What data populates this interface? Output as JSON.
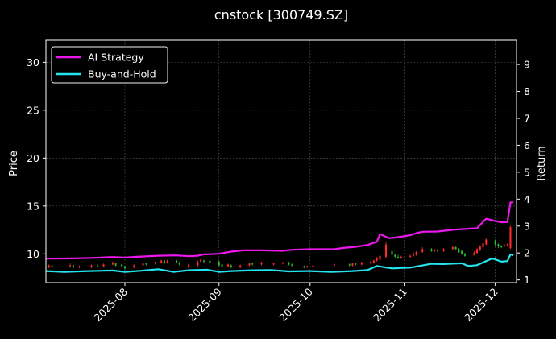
{
  "chart_data": {
    "type": "candlestick+line",
    "title": "cnstock [300749.SZ]",
    "ylabel_left": "Price",
    "ylabel_right": "Return",
    "ylim_left": [
      7,
      32.3
    ],
    "yticks_left": [
      10,
      15,
      20,
      25,
      30
    ],
    "ylim_right": [
      0.9,
      9.9
    ],
    "yticks_right": [
      1,
      2,
      3,
      4,
      5,
      6,
      7,
      8,
      9
    ],
    "xlim": [
      "2025-07-06",
      "2025-12-08"
    ],
    "xticks": [
      "2025-08",
      "2025-09",
      "2025-10",
      "2025-11",
      "2025-12"
    ],
    "grid": true,
    "legend_position": "top-left",
    "colors": {
      "background": "#000000",
      "up": "#ff2a2a",
      "down": "#2fb82f",
      "strategy": "#ee17ee",
      "buy_hold": "#22e5f0",
      "grid": "#555555"
    },
    "series": [
      {
        "name": "AI Strategy",
        "axis": "right",
        "points": [
          [
            "2025-07-06",
            1.79
          ],
          [
            "2025-07-15",
            1.8
          ],
          [
            "2025-07-22",
            1.82
          ],
          [
            "2025-07-28",
            1.85
          ],
          [
            "2025-08-01",
            1.83
          ],
          [
            "2025-08-05",
            1.86
          ],
          [
            "2025-08-12",
            1.9
          ],
          [
            "2025-08-18",
            1.91
          ],
          [
            "2025-08-22",
            1.88
          ],
          [
            "2025-08-25",
            1.9
          ],
          [
            "2025-08-27",
            1.95
          ],
          [
            "2025-09-01",
            1.97
          ],
          [
            "2025-09-05",
            2.05
          ],
          [
            "2025-09-09",
            2.1
          ],
          [
            "2025-09-15",
            2.1
          ],
          [
            "2025-09-22",
            2.08
          ],
          [
            "2025-09-25",
            2.12
          ],
          [
            "2025-10-01",
            2.14
          ],
          [
            "2025-10-09",
            2.14
          ],
          [
            "2025-10-12",
            2.19
          ],
          [
            "2025-10-16",
            2.23
          ],
          [
            "2025-10-20",
            2.3
          ],
          [
            "2025-10-23",
            2.42
          ],
          [
            "2025-10-24",
            2.7
          ],
          [
            "2025-10-27",
            2.55
          ],
          [
            "2025-10-30",
            2.59
          ],
          [
            "2025-11-03",
            2.66
          ],
          [
            "2025-11-05",
            2.74
          ],
          [
            "2025-11-07",
            2.79
          ],
          [
            "2025-11-12",
            2.8
          ],
          [
            "2025-11-17",
            2.86
          ],
          [
            "2025-11-21",
            2.89
          ],
          [
            "2025-11-25",
            2.92
          ],
          [
            "2025-11-28",
            3.27
          ],
          [
            "2025-12-01",
            3.19
          ],
          [
            "2025-12-03",
            3.14
          ],
          [
            "2025-12-05",
            3.15
          ],
          [
            "2025-12-06",
            3.88
          ],
          [
            "2025-12-07",
            3.88
          ]
        ]
      },
      {
        "name": "Buy-and-Hold",
        "axis": "right",
        "points": [
          [
            "2025-07-06",
            1.33
          ],
          [
            "2025-07-12",
            1.3
          ],
          [
            "2025-07-20",
            1.33
          ],
          [
            "2025-07-28",
            1.35
          ],
          [
            "2025-08-01",
            1.3
          ],
          [
            "2025-08-06",
            1.34
          ],
          [
            "2025-08-12",
            1.4
          ],
          [
            "2025-08-17",
            1.3
          ],
          [
            "2025-08-22",
            1.36
          ],
          [
            "2025-08-28",
            1.38
          ],
          [
            "2025-09-01",
            1.3
          ],
          [
            "2025-09-05",
            1.33
          ],
          [
            "2025-09-12",
            1.36
          ],
          [
            "2025-09-18",
            1.37
          ],
          [
            "2025-09-24",
            1.32
          ],
          [
            "2025-10-01",
            1.33
          ],
          [
            "2025-10-08",
            1.3
          ],
          [
            "2025-10-15",
            1.33
          ],
          [
            "2025-10-20",
            1.37
          ],
          [
            "2025-10-23",
            1.52
          ],
          [
            "2025-10-28",
            1.43
          ],
          [
            "2025-11-03",
            1.46
          ],
          [
            "2025-11-10",
            1.6
          ],
          [
            "2025-11-14",
            1.59
          ],
          [
            "2025-11-20",
            1.62
          ],
          [
            "2025-11-22",
            1.52
          ],
          [
            "2025-11-25",
            1.55
          ],
          [
            "2025-11-30",
            1.8
          ],
          [
            "2025-12-03",
            1.68
          ],
          [
            "2025-12-05",
            1.7
          ],
          [
            "2025-12-06",
            1.95
          ],
          [
            "2025-12-07",
            1.92
          ]
        ]
      }
    ],
    "candles": [
      [
        "2025-07-07",
        8.6,
        8.8,
        8.5,
        8.9
      ],
      [
        "2025-07-08",
        8.8,
        8.7,
        8.6,
        8.9
      ],
      [
        "2025-07-14",
        8.7,
        8.8,
        8.6,
        9.0
      ],
      [
        "2025-07-15",
        8.8,
        8.6,
        8.5,
        8.9
      ],
      [
        "2025-07-17",
        8.6,
        8.7,
        8.5,
        8.8
      ],
      [
        "2025-07-21",
        8.6,
        8.8,
        8.5,
        8.9
      ],
      [
        "2025-07-23",
        8.8,
        8.7,
        8.6,
        8.9
      ],
      [
        "2025-07-25",
        8.7,
        8.9,
        8.6,
        9.0
      ],
      [
        "2025-07-28",
        8.9,
        9.1,
        8.8,
        9.2
      ],
      [
        "2025-07-29",
        9.0,
        8.8,
        8.7,
        9.1
      ],
      [
        "2025-07-31",
        8.9,
        8.7,
        8.6,
        9.0
      ],
      [
        "2025-08-01",
        8.7,
        8.5,
        8.4,
        8.8
      ],
      [
        "2025-08-04",
        8.6,
        8.8,
        8.5,
        8.9
      ],
      [
        "2025-08-07",
        8.8,
        9.0,
        8.7,
        9.1
      ],
      [
        "2025-08-08",
        9.0,
        8.9,
        8.8,
        9.1
      ],
      [
        "2025-08-11",
        9.0,
        9.1,
        8.9,
        9.2
      ],
      [
        "2025-08-13",
        9.1,
        9.3,
        9.0,
        9.4
      ],
      [
        "2025-08-14",
        9.3,
        9.1,
        9.0,
        9.4
      ],
      [
        "2025-08-15",
        9.1,
        9.3,
        9.0,
        9.4
      ],
      [
        "2025-08-18",
        9.3,
        9.1,
        9.0,
        9.4
      ],
      [
        "2025-08-19",
        9.1,
        8.9,
        8.8,
        9.2
      ],
      [
        "2025-08-22",
        8.6,
        8.9,
        8.5,
        9.0
      ],
      [
        "2025-08-25",
        8.8,
        9.2,
        8.7,
        9.3
      ],
      [
        "2025-08-26",
        9.2,
        9.4,
        9.1,
        9.5
      ],
      [
        "2025-08-27",
        9.3,
        9.2,
        9.1,
        9.4
      ],
      [
        "2025-08-29",
        9.3,
        9.1,
        9.0,
        9.4
      ],
      [
        "2025-09-01",
        9.2,
        8.8,
        8.6,
        9.3
      ],
      [
        "2025-09-02",
        8.9,
        8.7,
        8.5,
        9.0
      ],
      [
        "2025-09-04",
        8.7,
        8.9,
        8.6,
        9.0
      ],
      [
        "2025-09-05",
        8.8,
        8.6,
        8.5,
        8.9
      ],
      [
        "2025-09-08",
        8.6,
        8.8,
        8.5,
        8.9
      ],
      [
        "2025-09-11",
        8.8,
        9.0,
        8.7,
        9.1
      ],
      [
        "2025-09-12",
        9.0,
        8.9,
        8.8,
        9.1
      ],
      [
        "2025-09-15",
        8.9,
        9.1,
        8.8,
        9.2
      ],
      [
        "2025-09-19",
        8.9,
        9.0,
        8.8,
        9.1
      ],
      [
        "2025-09-22",
        9.0,
        9.1,
        8.9,
        9.2
      ],
      [
        "2025-09-24",
        9.1,
        8.9,
        8.8,
        9.2
      ],
      [
        "2025-09-25",
        8.9,
        8.8,
        8.7,
        9.0
      ],
      [
        "2025-09-29",
        8.7,
        8.6,
        8.5,
        8.8
      ],
      [
        "2025-09-30",
        8.6,
        8.7,
        8.5,
        8.8
      ],
      [
        "2025-10-02",
        8.6,
        8.8,
        8.5,
        8.9
      ],
      [
        "2025-10-09",
        8.8,
        8.9,
        8.7,
        9.0
      ],
      [
        "2025-10-14",
        8.9,
        8.8,
        8.7,
        9.0
      ],
      [
        "2025-10-15",
        8.8,
        9.0,
        8.7,
        9.1
      ],
      [
        "2025-10-16",
        9.0,
        8.9,
        8.8,
        9.1
      ],
      [
        "2025-10-18",
        8.9,
        9.1,
        8.8,
        9.2
      ],
      [
        "2025-10-21",
        9.0,
        9.2,
        8.9,
        9.3
      ],
      [
        "2025-10-22",
        9.1,
        9.3,
        9.0,
        9.4
      ],
      [
        "2025-10-23",
        9.3,
        9.5,
        9.2,
        9.7
      ],
      [
        "2025-10-24",
        9.4,
        9.8,
        9.3,
        10.0
      ],
      [
        "2025-10-26",
        9.7,
        11.0,
        9.6,
        11.3
      ],
      [
        "2025-10-28",
        10.3,
        9.9,
        9.7,
        10.6
      ],
      [
        "2025-10-29",
        9.9,
        9.7,
        9.5,
        10.0
      ],
      [
        "2025-10-30",
        9.7,
        9.6,
        9.5,
        9.9
      ],
      [
        "2025-10-31",
        9.6,
        9.7,
        9.5,
        9.8
      ],
      [
        "2025-11-03",
        9.7,
        9.8,
        9.6,
        9.9
      ],
      [
        "2025-11-04",
        9.8,
        10.0,
        9.7,
        10.2
      ],
      [
        "2025-11-05",
        9.9,
        10.2,
        9.8,
        10.3
      ],
      [
        "2025-11-07",
        10.2,
        10.5,
        10.1,
        10.7
      ],
      [
        "2025-11-10",
        10.5,
        10.3,
        10.2,
        10.6
      ],
      [
        "2025-11-11",
        10.3,
        10.4,
        10.2,
        10.5
      ],
      [
        "2025-11-12",
        10.4,
        10.3,
        10.2,
        10.5
      ],
      [
        "2025-11-14",
        10.3,
        10.5,
        10.2,
        10.6
      ],
      [
        "2025-11-17",
        10.5,
        10.7,
        10.4,
        10.8
      ],
      [
        "2025-11-18",
        10.7,
        10.5,
        10.4,
        10.8
      ],
      [
        "2025-11-19",
        10.5,
        10.2,
        10.1,
        10.6
      ],
      [
        "2025-11-20",
        10.3,
        10.0,
        9.9,
        10.4
      ],
      [
        "2025-11-21",
        10.0,
        9.8,
        9.7,
        10.1
      ],
      [
        "2025-11-24",
        9.9,
        10.1,
        9.8,
        10.3
      ],
      [
        "2025-11-25",
        10.1,
        10.5,
        10.0,
        10.6
      ],
      [
        "2025-11-26",
        10.4,
        10.8,
        10.3,
        10.9
      ],
      [
        "2025-11-27",
        10.7,
        11.1,
        10.6,
        11.3
      ],
      [
        "2025-11-28",
        11.0,
        11.5,
        10.9,
        11.6
      ],
      [
        "2025-12-01",
        11.4,
        11.0,
        10.8,
        11.5
      ],
      [
        "2025-12-02",
        11.0,
        10.8,
        10.6,
        11.1
      ],
      [
        "2025-12-03",
        10.8,
        10.7,
        10.6,
        10.9
      ],
      [
        "2025-12-04",
        10.8,
        10.9,
        10.7,
        11.0
      ],
      [
        "2025-12-05",
        10.9,
        11.0,
        10.8,
        11.1
      ],
      [
        "2025-12-06",
        10.6,
        12.8,
        10.5,
        13.0
      ]
    ]
  }
}
